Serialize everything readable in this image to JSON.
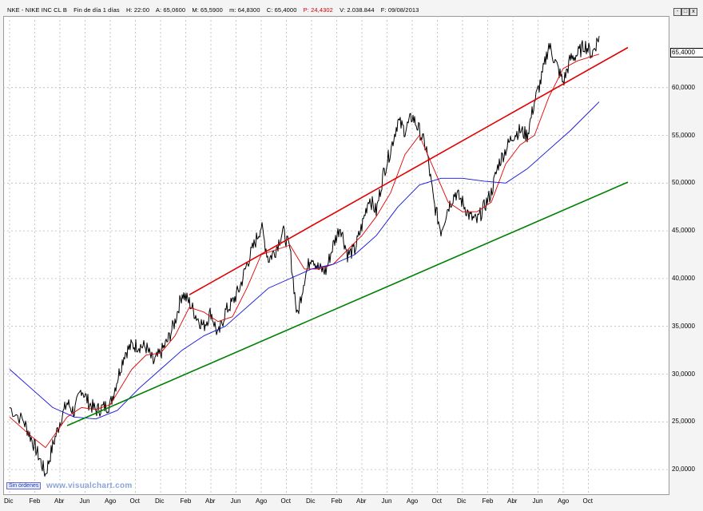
{
  "header": {
    "symbol": "NKE - NIKE INC CL B",
    "period": "Fin de día 1 días",
    "hour": "H: 22:00",
    "open": "A: 65,0600",
    "high": "M: 65,5900",
    "low": "m: 64,8300",
    "close": "C: 65,4000",
    "change": "P: 24,4302",
    "volume": "V: 2.038.844",
    "date": "F: 09/08/2013"
  },
  "window_controls": [
    "-",
    "□",
    "x"
  ],
  "last_price_label": "65,4000",
  "sin_ordenes": "Sin órdenes",
  "watermark": "www.visualchart.com",
  "colors": {
    "price": "#000000",
    "ma_short": "#e00000",
    "ma_long": "#1010e0",
    "resistance": "#e00000",
    "support": "#008000",
    "grid": "#b8b8b8"
  },
  "chart_data": {
    "type": "line",
    "ylim": [
      17.5,
      67.5
    ],
    "y_ticks": [
      "20,0000",
      "25,0000",
      "30,0000",
      "35,0000",
      "40,0000",
      "45,0000",
      "50,0000",
      "55,0000",
      "60,0000"
    ],
    "x_ticks": [
      "Dic",
      "Feb",
      "Abr",
      "Jun",
      "Ago",
      "Oct",
      "Dic",
      "Feb",
      "Abr",
      "Jun",
      "Ago",
      "Oct",
      "Dic",
      "Feb",
      "Abr",
      "Jun",
      "Ago",
      "Oct",
      "Dic",
      "Feb",
      "Abr",
      "Jun",
      "Ago",
      "Oct"
    ],
    "grid": true,
    "series": [
      {
        "key": "price",
        "values": [
          [
            0,
            26.5
          ],
          [
            2,
            25.0
          ],
          [
            3,
            23.3
          ],
          [
            4,
            21.5
          ],
          [
            5,
            19.5
          ],
          [
            6,
            22.5
          ],
          [
            7,
            25.0
          ],
          [
            8,
            27.0
          ],
          [
            9,
            26.0
          ],
          [
            10,
            28.5
          ],
          [
            11,
            27.0
          ],
          [
            12,
            26.2
          ],
          [
            13,
            26.5
          ],
          [
            14,
            26.8
          ],
          [
            15,
            29.5
          ],
          [
            16,
            32.2
          ],
          [
            17,
            33.0
          ],
          [
            18,
            33.0
          ],
          [
            19,
            32.8
          ],
          [
            20,
            31.2
          ],
          [
            21,
            32.2
          ],
          [
            22,
            33.5
          ],
          [
            23,
            35.5
          ],
          [
            24,
            38.5
          ],
          [
            25,
            37.5
          ],
          [
            26,
            36.0
          ],
          [
            27,
            35.0
          ],
          [
            28,
            36.5
          ],
          [
            29,
            34.0
          ],
          [
            30,
            36.5
          ],
          [
            31,
            37.5
          ],
          [
            32,
            39.0
          ],
          [
            33,
            41.5
          ],
          [
            34,
            43.5
          ],
          [
            35,
            45.5
          ],
          [
            36,
            42.0
          ],
          [
            37,
            43.0
          ],
          [
            38,
            45.0
          ],
          [
            39,
            43.0
          ],
          [
            40,
            36.0
          ],
          [
            41,
            40.0
          ],
          [
            42,
            42.5
          ],
          [
            43,
            41.0
          ],
          [
            44,
            40.8
          ],
          [
            45,
            43.5
          ],
          [
            46,
            45.5
          ],
          [
            47,
            42.5
          ],
          [
            48,
            43.0
          ],
          [
            49,
            45.5
          ],
          [
            50,
            48.5
          ],
          [
            51,
            47.0
          ],
          [
            52,
            51.0
          ],
          [
            53,
            53.5
          ],
          [
            54,
            56.5
          ],
          [
            55,
            55.5
          ],
          [
            56,
            57.0
          ],
          [
            57,
            55.5
          ],
          [
            58,
            53.5
          ],
          [
            59,
            48.0
          ],
          [
            60,
            45.0
          ],
          [
            61,
            47.5
          ],
          [
            62,
            49.0
          ],
          [
            63,
            48.0
          ],
          [
            64,
            46.5
          ],
          [
            65,
            46.0
          ],
          [
            66,
            47.5
          ],
          [
            67,
            49.0
          ],
          [
            68,
            52.0
          ],
          [
            69,
            53.5
          ],
          [
            70,
            55.0
          ],
          [
            71,
            55.5
          ],
          [
            72,
            55.0
          ],
          [
            73,
            58.5
          ],
          [
            74,
            61.0
          ],
          [
            75,
            64.5
          ],
          [
            76,
            62.5
          ],
          [
            77,
            60.5
          ],
          [
            78,
            63.0
          ],
          [
            79,
            63.5
          ],
          [
            80,
            64.5
          ],
          [
            81,
            63.5
          ],
          [
            82,
            65.4
          ]
        ]
      },
      {
        "key": "ma_short",
        "values": [
          [
            0,
            25.5
          ],
          [
            3,
            23.5
          ],
          [
            5,
            22.3
          ],
          [
            8,
            25.5
          ],
          [
            10,
            26.5
          ],
          [
            12,
            26.3
          ],
          [
            14,
            26.8
          ],
          [
            17,
            30.5
          ],
          [
            19,
            32.0
          ],
          [
            21,
            32.2
          ],
          [
            23,
            34.0
          ],
          [
            25,
            37.0
          ],
          [
            27,
            36.5
          ],
          [
            29,
            35.5
          ],
          [
            31,
            36.0
          ],
          [
            33,
            39.0
          ],
          [
            35,
            42.5
          ],
          [
            37,
            43.0
          ],
          [
            39,
            43.5
          ],
          [
            41,
            41.0
          ],
          [
            43,
            41.0
          ],
          [
            45,
            41.5
          ],
          [
            47,
            43.0
          ],
          [
            49,
            44.5
          ],
          [
            51,
            46.5
          ],
          [
            53,
            49.0
          ],
          [
            55,
            53.0
          ],
          [
            57,
            55.0
          ],
          [
            59,
            51.5
          ],
          [
            61,
            48.0
          ],
          [
            63,
            47.0
          ],
          [
            65,
            47.0
          ],
          [
            67,
            48.0
          ],
          [
            69,
            52.0
          ],
          [
            71,
            54.0
          ],
          [
            73,
            55.0
          ],
          [
            75,
            59.0
          ],
          [
            77,
            62.0
          ],
          [
            79,
            62.8
          ],
          [
            82,
            63.5
          ]
        ]
      },
      {
        "key": "ma_long",
        "values": [
          [
            0,
            30.5
          ],
          [
            3,
            28.5
          ],
          [
            6,
            26.5
          ],
          [
            9,
            25.5
          ],
          [
            12,
            25.3
          ],
          [
            15,
            26.2
          ],
          [
            18,
            28.5
          ],
          [
            21,
            30.5
          ],
          [
            24,
            32.5
          ],
          [
            27,
            34.0
          ],
          [
            30,
            35.0
          ],
          [
            33,
            37.0
          ],
          [
            36,
            39.0
          ],
          [
            39,
            40.0
          ],
          [
            42,
            41.0
          ],
          [
            45,
            41.5
          ],
          [
            48,
            42.5
          ],
          [
            51,
            44.5
          ],
          [
            54,
            47.5
          ],
          [
            57,
            49.8
          ],
          [
            60,
            50.5
          ],
          [
            63,
            50.5
          ],
          [
            66,
            50.2
          ],
          [
            69,
            50.0
          ],
          [
            72,
            51.5
          ],
          [
            75,
            53.5
          ],
          [
            78,
            55.5
          ],
          [
            82,
            58.5
          ]
        ]
      },
      {
        "key": "resistance",
        "values": [
          [
            25,
            38.3
          ],
          [
            86,
            64.2
          ]
        ]
      },
      {
        "key": "support",
        "values": [
          [
            8,
            24.6
          ],
          [
            86,
            50.1
          ]
        ]
      }
    ]
  }
}
